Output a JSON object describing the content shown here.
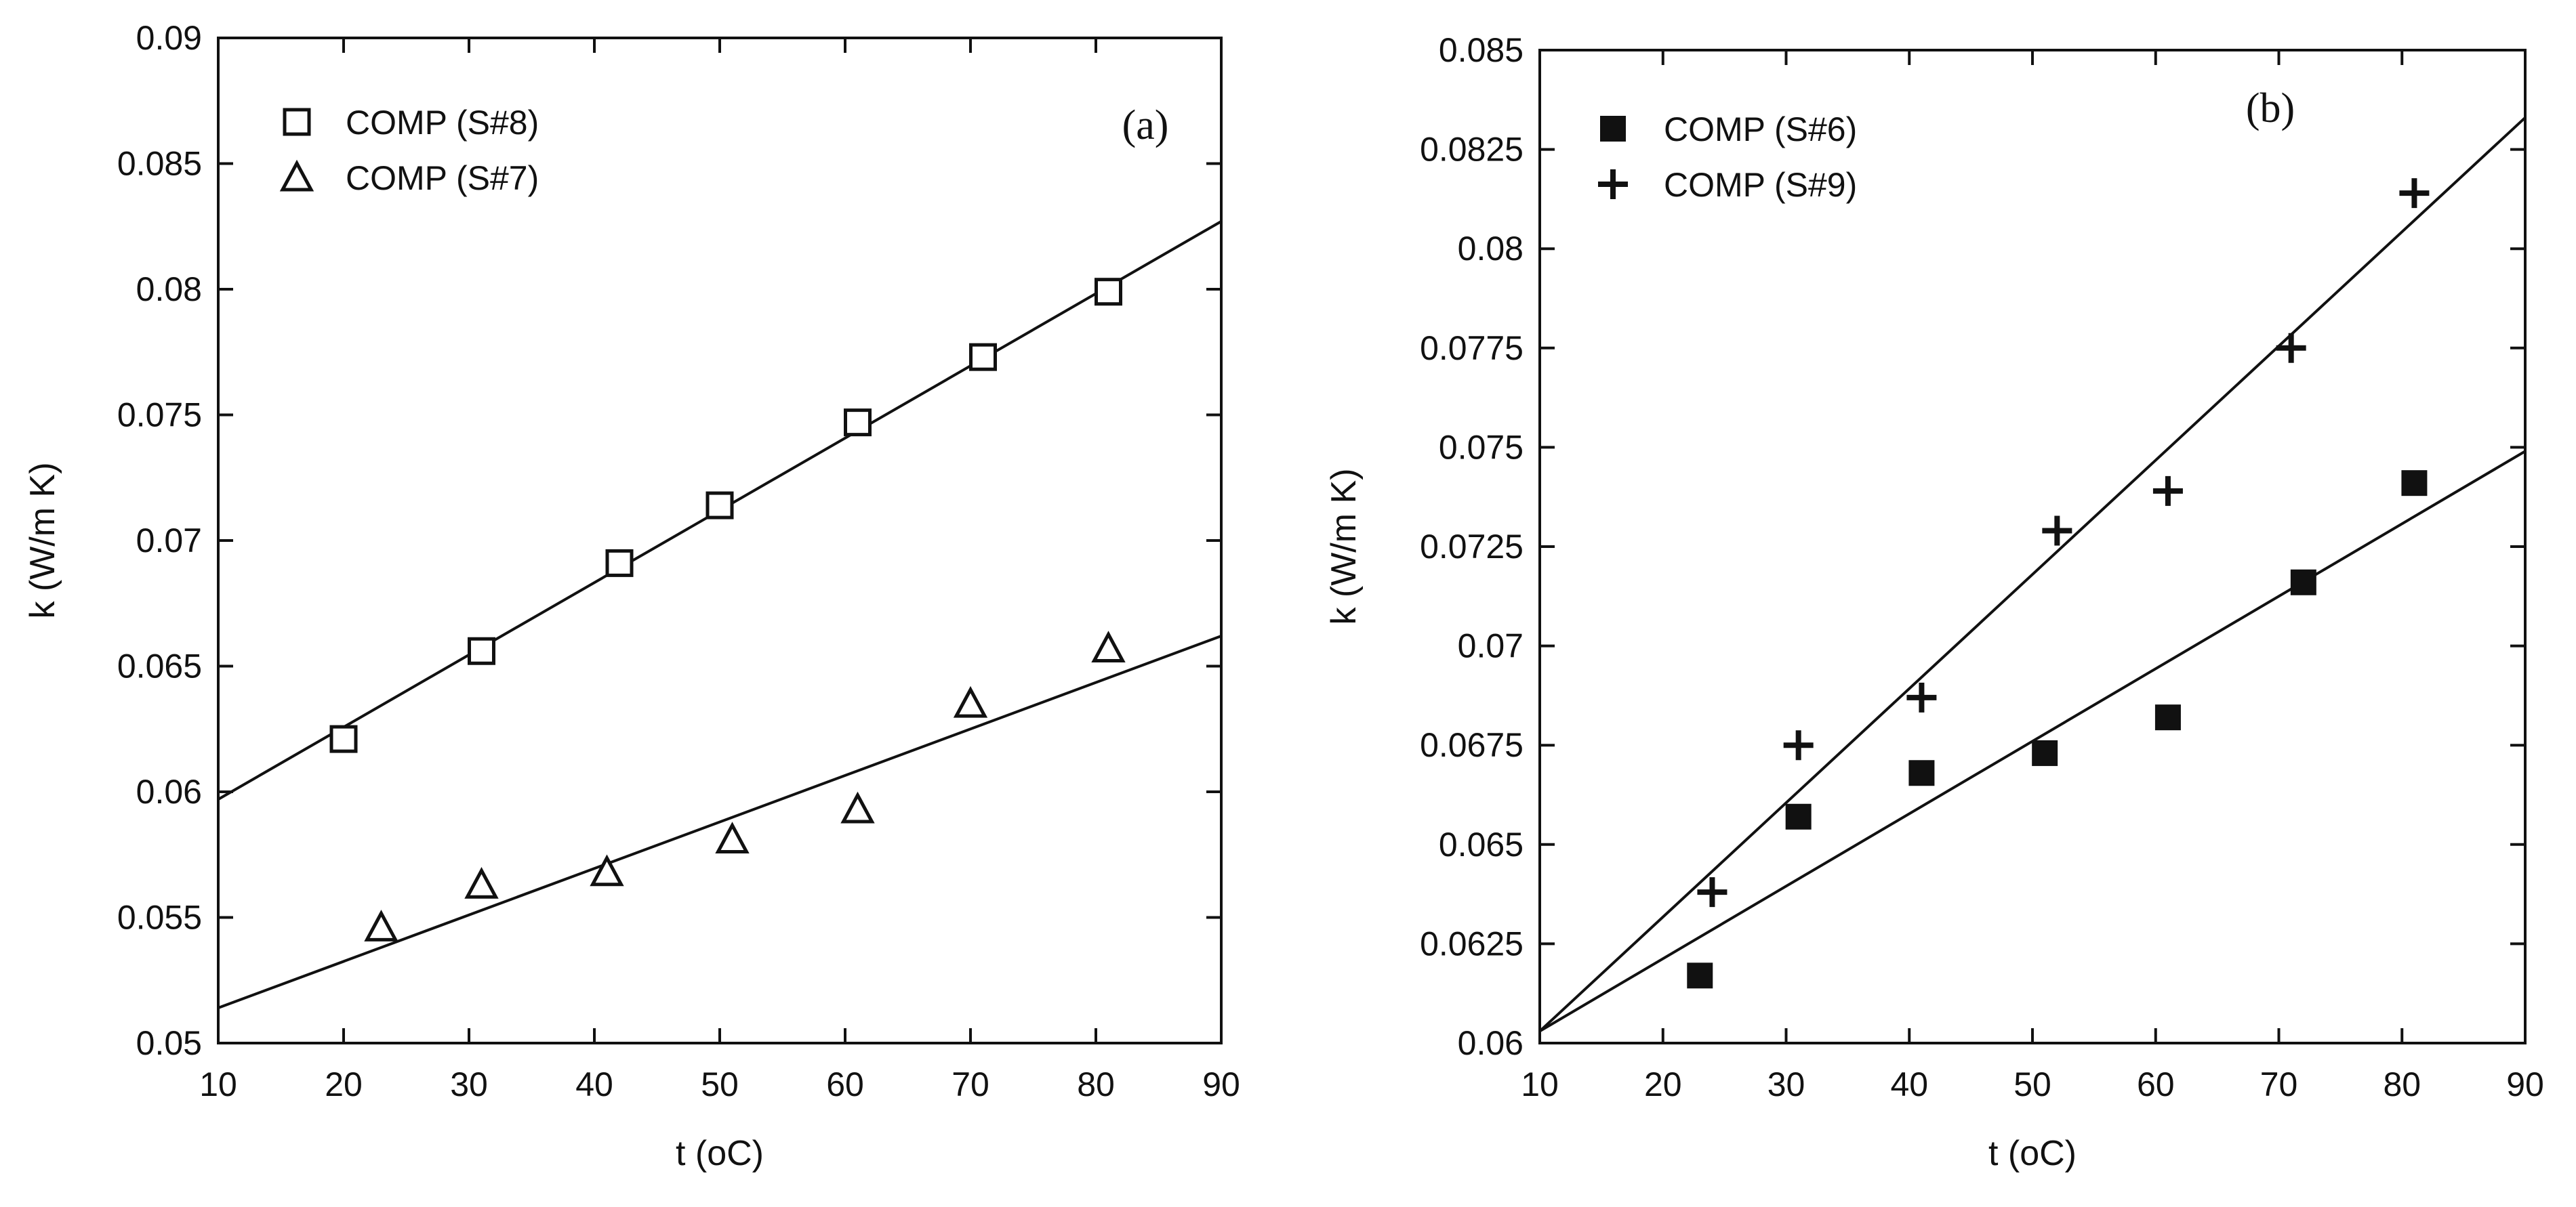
{
  "chart_data": [
    {
      "type": "scatter",
      "panel_label": "(a)",
      "xlabel": "t (oC)",
      "ylabel": "k (W/m K)",
      "xlim": [
        10,
        90
      ],
      "ylim": [
        0.05,
        0.09
      ],
      "x_ticks": [
        "10",
        "20",
        "30",
        "40",
        "50",
        "60",
        "70",
        "80",
        "90"
      ],
      "y_ticks": [
        "0.05",
        "0.055",
        "0.06",
        "0.065",
        "0.07",
        "0.075",
        "0.08",
        "0.085",
        "0.09"
      ],
      "grid": false,
      "legend_position": "top-left",
      "series": [
        {
          "name": "COMP (S#8)",
          "marker": "open-square",
          "x": [
            20,
            31,
            42,
            50,
            61,
            71,
            81
          ],
          "y": [
            0.0621,
            0.0656,
            0.0691,
            0.0714,
            0.0747,
            0.0773,
            0.0799
          ],
          "fit": {
            "x": [
              10,
              90
            ],
            "y": [
              0.0597,
              0.0827
            ]
          }
        },
        {
          "name": "COMP (S#7)",
          "marker": "open-triangle",
          "x": [
            23,
            31,
            41,
            51,
            61,
            70,
            81
          ],
          "y": [
            0.0546,
            0.0563,
            0.0568,
            0.0581,
            0.0593,
            0.0635,
            0.0657
          ],
          "fit": {
            "x": [
              10,
              90
            ],
            "y": [
              0.0514,
              0.0662
            ]
          }
        }
      ]
    },
    {
      "type": "scatter",
      "panel_label": "(b)",
      "xlabel": "t (oC)",
      "ylabel": "k (W/m K)",
      "xlim": [
        10,
        90
      ],
      "ylim": [
        0.06,
        0.085
      ],
      "x_ticks": [
        "10",
        "20",
        "30",
        "40",
        "50",
        "60",
        "70",
        "80",
        "90"
      ],
      "y_ticks": [
        "0.06",
        "0.0625",
        "0.065",
        "0.0675",
        "0.07",
        "0.0725",
        "0.075",
        "0.0775",
        "0.08",
        "0.0825",
        "0.085"
      ],
      "grid": false,
      "legend_position": "top-left",
      "series": [
        {
          "name": "COMP (S#6)",
          "marker": "filled-square",
          "x": [
            23,
            31,
            41,
            51,
            61,
            72,
            81
          ],
          "y": [
            0.0617,
            0.0657,
            0.0668,
            0.0673,
            0.0682,
            0.0716,
            0.0741
          ],
          "fit": {
            "x": [
              10,
              90
            ],
            "y": [
              0.0603,
              0.0749
            ]
          }
        },
        {
          "name": "COMP (S#9)",
          "marker": "plus",
          "x": [
            24,
            31,
            41,
            52,
            61,
            71,
            81
          ],
          "y": [
            0.0638,
            0.0675,
            0.0687,
            0.0729,
            0.0739,
            0.0775,
            0.0814
          ],
          "fit": {
            "x": [
              10,
              90
            ],
            "y": [
              0.0603,
              0.0833
            ]
          }
        }
      ]
    }
  ]
}
